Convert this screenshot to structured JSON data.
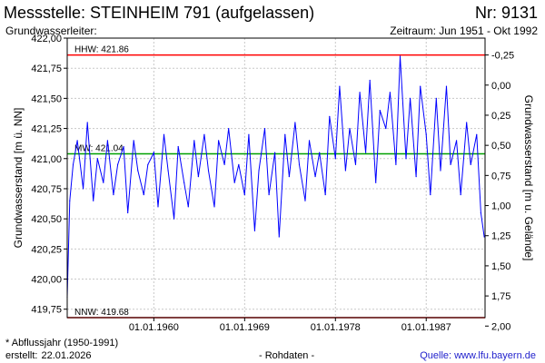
{
  "header": {
    "title": "Messstelle: STEINHEIM 791 (aufgelassen)",
    "nr": "Nr: 9131",
    "aquifer_label": "Grundwasserleiter:",
    "period": "Zeitraum: Jun 1951 - Okt 1992"
  },
  "footer": {
    "note": "* Abflussjahr (1950-1991)",
    "created_label": "erstellt:",
    "created_date": "22.01.2026",
    "center": "- Rohdaten -",
    "source": "Quelle: www.lfu.bayern.de"
  },
  "colors": {
    "series": "#0000ff",
    "hhw": "#ff0000",
    "nnw": "#ff0000",
    "mw": "#00a000",
    "grid": "#c8c8c8"
  },
  "chart_data": {
    "type": "line",
    "title": "",
    "ylabel": "Grundwasserstand [m ü. NN]",
    "ylabel_right": "Grundwasserstand [m u. Gelände]",
    "ylim": [
      419.68,
      422.0
    ],
    "xlim": [
      "1951-06-01",
      "1992-10-31"
    ],
    "y_ticks": [
      "419,75",
      "420,00",
      "420,25",
      "420,50",
      "420,75",
      "421,00",
      "421,25",
      "421,50",
      "421,75",
      "422,00"
    ],
    "y_tick_values": [
      419.75,
      420.0,
      420.25,
      420.5,
      420.75,
      421.0,
      421.25,
      421.5,
      421.75,
      422.0
    ],
    "y2_ticks": [
      "-0,25",
      "0,00",
      "0,25",
      "0,50",
      "0,75",
      "1,00",
      "1,25",
      "1,50",
      "1,75",
      "2,00"
    ],
    "y2_tick_values": [
      -0.25,
      0.0,
      0.25,
      0.5,
      0.75,
      1.0,
      1.25,
      1.5,
      1.75,
      2.0
    ],
    "y2_reference": 421.61,
    "x_ticks": [
      "01.01.1960",
      "01.01.1969",
      "01.01.1978",
      "01.01.1987"
    ],
    "x_tick_values": [
      "1960-01-01",
      "1969-01-01",
      "1978-01-01",
      "1987-01-01"
    ],
    "grid": true,
    "reference_lines": [
      {
        "label": "HHW: 421.86",
        "value": 421.86,
        "color": "#ff0000"
      },
      {
        "label": "MW: 421.04",
        "value": 421.04,
        "color": "#00a000"
      },
      {
        "label": "NNW: 419.68",
        "value": 419.68,
        "color": "#ff0000"
      }
    ],
    "series": [
      {
        "x": [
          "1951-06-01",
          "1951-09-01",
          "1952-01-01",
          "1952-06-01",
          "1953-01-01",
          "1953-06-01",
          "1954-01-01",
          "1954-06-01",
          "1955-01-01",
          "1955-06-01",
          "1956-01-01",
          "1956-06-01",
          "1957-01-01",
          "1957-06-01",
          "1958-01-01",
          "1958-06-01",
          "1959-01-01",
          "1959-06-01",
          "1960-01-01",
          "1960-06-01",
          "1961-01-01",
          "1961-06-01",
          "1962-01-01",
          "1962-06-01",
          "1963-01-01",
          "1963-06-01",
          "1964-01-01",
          "1964-06-01",
          "1965-01-01",
          "1965-06-01",
          "1966-01-01",
          "1966-06-01",
          "1967-01-01",
          "1967-06-01",
          "1968-01-01",
          "1968-06-01",
          "1969-01-01",
          "1969-06-01",
          "1970-01-01",
          "1970-06-01",
          "1971-01-01",
          "1971-06-01",
          "1972-01-01",
          "1972-06-01",
          "1973-01-01",
          "1973-06-01",
          "1974-01-01",
          "1974-06-01",
          "1975-01-01",
          "1975-06-01",
          "1976-01-01",
          "1976-06-01",
          "1977-01-01",
          "1977-06-01",
          "1978-01-01",
          "1978-06-01",
          "1979-01-01",
          "1979-06-01",
          "1980-01-01",
          "1980-06-01",
          "1981-01-01",
          "1981-06-01",
          "1982-01-01",
          "1982-06-01",
          "1983-01-01",
          "1983-06-01",
          "1984-01-01",
          "1984-06-01",
          "1985-01-01",
          "1985-06-01",
          "1986-01-01",
          "1986-06-01",
          "1987-01-01",
          "1987-06-01",
          "1988-01-01",
          "1988-06-01",
          "1989-01-01",
          "1989-06-01",
          "1990-01-01",
          "1990-06-01",
          "1991-01-01",
          "1991-06-01",
          "1992-01-01",
          "1992-06-01",
          "1992-10-01"
        ],
        "values": [
          419.85,
          420.65,
          420.95,
          421.15,
          420.75,
          421.3,
          420.65,
          421.0,
          420.8,
          421.15,
          420.7,
          420.95,
          421.1,
          420.55,
          421.15,
          420.9,
          420.7,
          420.95,
          421.05,
          420.6,
          421.2,
          420.9,
          420.5,
          421.1,
          420.8,
          420.6,
          421.15,
          420.85,
          421.2,
          420.9,
          420.6,
          421.15,
          420.95,
          421.25,
          420.8,
          420.95,
          420.7,
          421.2,
          420.4,
          420.9,
          421.25,
          420.7,
          421.05,
          420.35,
          421.2,
          420.85,
          421.3,
          420.95,
          420.65,
          421.15,
          420.85,
          421.05,
          420.7,
          421.35,
          421.0,
          421.6,
          420.9,
          421.25,
          420.95,
          421.55,
          421.05,
          421.65,
          420.8,
          421.4,
          421.25,
          421.55,
          420.95,
          421.85,
          421.0,
          421.5,
          420.85,
          421.6,
          421.2,
          420.7,
          421.5,
          420.9,
          421.6,
          420.95,
          421.15,
          420.7,
          421.3,
          420.95,
          421.2,
          420.55,
          420.35
        ]
      }
    ]
  }
}
